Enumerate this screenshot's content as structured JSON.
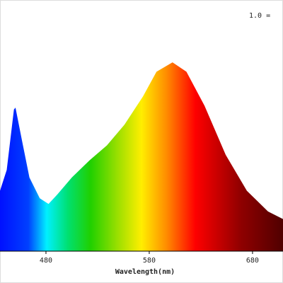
{
  "chart_data": {
    "type": "area",
    "annotation": "1.0 =",
    "x_label": "Wavelength(nm)",
    "x": [
      435.5,
      442,
      449,
      450.5,
      457,
      464,
      474,
      482.5,
      491,
      505,
      522,
      539,
      556,
      574,
      587,
      602.5,
      616,
      633.5,
      654,
      674.5,
      695,
      709.5
    ],
    "values": [
      0.32,
      0.43,
      0.75,
      0.76,
      0.58,
      0.39,
      0.28,
      0.25,
      0.3,
      0.39,
      0.48,
      0.56,
      0.67,
      0.82,
      0.95,
      1.0,
      0.95,
      0.77,
      0.51,
      0.32,
      0.21,
      0.17
    ],
    "xlim": [
      435.5,
      709.5
    ],
    "ylim": [
      0,
      1.3
    ],
    "xticks": [
      480,
      580,
      680
    ]
  }
}
